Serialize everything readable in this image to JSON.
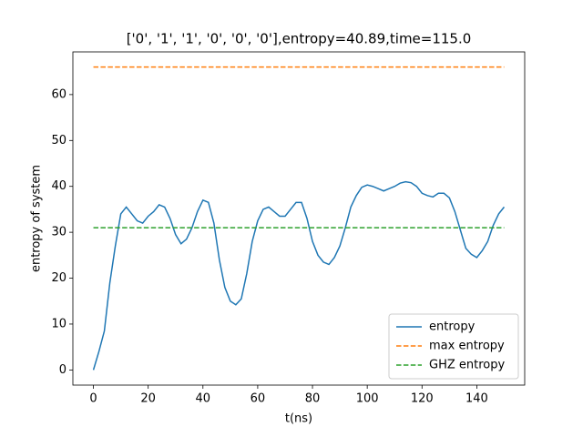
{
  "chart_data": {
    "type": "line",
    "title": "['0', '1', '1', '0', '0', '0'],entropy=40.89,time=115.0",
    "x_label": "t(ns)",
    "y_label": "entropy of system",
    "xlim": [
      -7.5,
      157.5
    ],
    "ylim": [
      -3.3,
      69.3
    ],
    "xticks": [
      0,
      20,
      40,
      60,
      80,
      100,
      120,
      140
    ],
    "yticks": [
      0,
      10,
      20,
      30,
      40,
      50,
      60
    ],
    "legend": "lower right",
    "series": [
      {
        "name": "entropy",
        "color": "#1f77b4",
        "dashed": false,
        "x": [
          0,
          2,
          4,
          6,
          8,
          10,
          12,
          14,
          16,
          18,
          20,
          22,
          24,
          26,
          28,
          30,
          32,
          34,
          36,
          38,
          40,
          42,
          44,
          46,
          48,
          50,
          52,
          54,
          56,
          58,
          60,
          62,
          64,
          66,
          68,
          70,
          72,
          74,
          76,
          78,
          80,
          82,
          84,
          86,
          88,
          90,
          92,
          94,
          96,
          98,
          100,
          102,
          104,
          106,
          108,
          110,
          112,
          114,
          116,
          118,
          120,
          122,
          124,
          126,
          128,
          130,
          132,
          134,
          136,
          138,
          140,
          142,
          144,
          146,
          148,
          150
        ],
        "values": [
          0,
          4,
          8.5,
          19,
          27,
          34,
          35.5,
          34,
          32.5,
          32,
          33.5,
          34.5,
          36,
          35.5,
          33,
          29.5,
          27.5,
          28.5,
          31,
          34.5,
          37,
          36.5,
          32,
          24,
          18,
          15,
          14.2,
          15.5,
          21,
          28,
          32.5,
          35,
          35.5,
          34.5,
          33.5,
          33.5,
          35,
          36.5,
          36.5,
          33,
          28,
          25,
          23.5,
          23,
          24.5,
          27,
          31,
          35.5,
          38,
          39.8,
          40.3,
          40,
          39.5,
          39,
          39.5,
          40,
          40.7,
          41,
          40.8,
          40,
          38.5,
          38,
          37.7,
          38.5,
          38.5,
          37.5,
          34.5,
          30.5,
          26.5,
          25.2,
          24.5,
          26,
          28,
          31.5,
          34,
          35.5
        ]
      },
      {
        "name": "max entropy",
        "color": "#ff7f0e",
        "dashed": true,
        "x": [
          0,
          150
        ],
        "values": [
          66,
          66
        ]
      },
      {
        "name": "GHZ entropy",
        "color": "#2ca02c",
        "dashed": true,
        "x": [
          0,
          150
        ],
        "values": [
          31,
          31
        ]
      }
    ]
  }
}
